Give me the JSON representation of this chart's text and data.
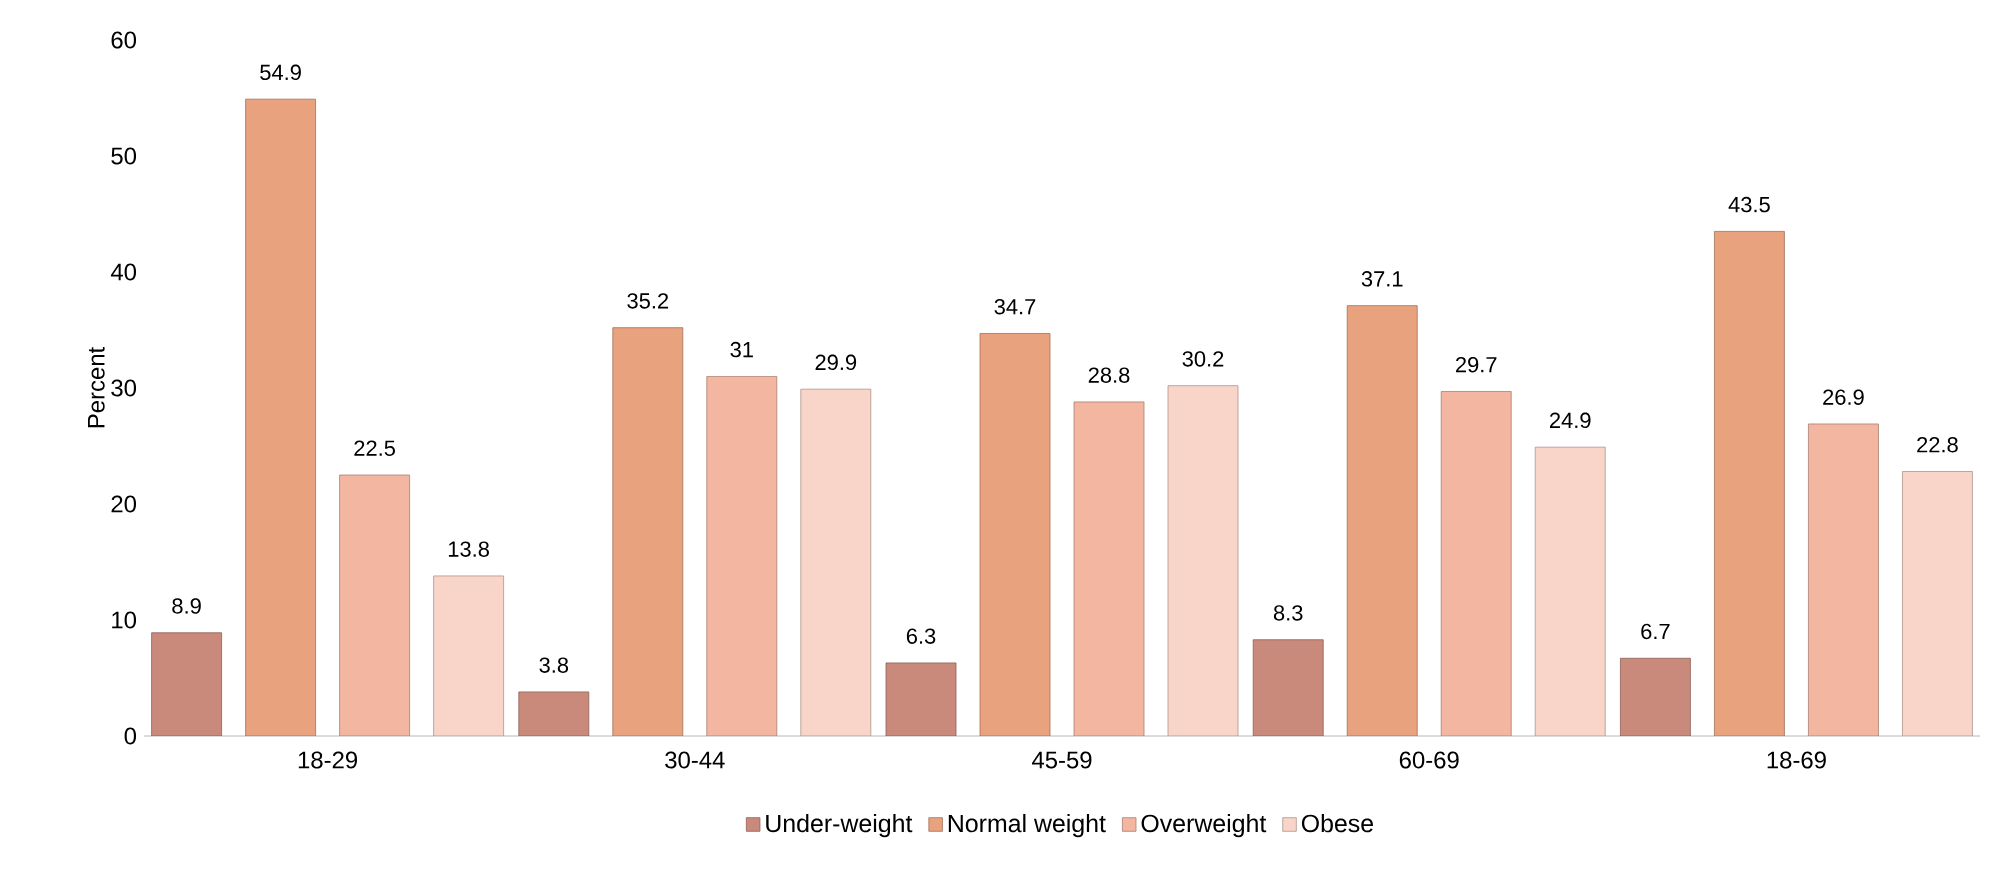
{
  "chart_data": {
    "type": "bar",
    "ylabel": "Percent",
    "categories": [
      "18-29",
      "30-44",
      "45-59",
      "60-69",
      "18-69"
    ],
    "series": [
      {
        "name": "Under-weight",
        "color": "#c98a7c",
        "values": [
          8.9,
          3.8,
          6.3,
          8.3,
          6.7
        ]
      },
      {
        "name": "Normal weight",
        "color": "#e8a27e",
        "values": [
          54.9,
          35.2,
          34.7,
          37.1,
          43.5
        ]
      },
      {
        "name": "Overweight",
        "color": "#f3b6a1",
        "values": [
          22.5,
          31,
          28.8,
          29.7,
          26.9
        ]
      },
      {
        "name": "Obese",
        "color": "#f8d4c9",
        "values": [
          13.8,
          29.9,
          30.2,
          24.9,
          22.8
        ]
      }
    ],
    "ylim": [
      0,
      60
    ],
    "yticks": [
      0,
      10,
      20,
      30,
      40,
      50,
      60
    ],
    "grid": false,
    "legend": "bottom",
    "data_labels": true
  }
}
